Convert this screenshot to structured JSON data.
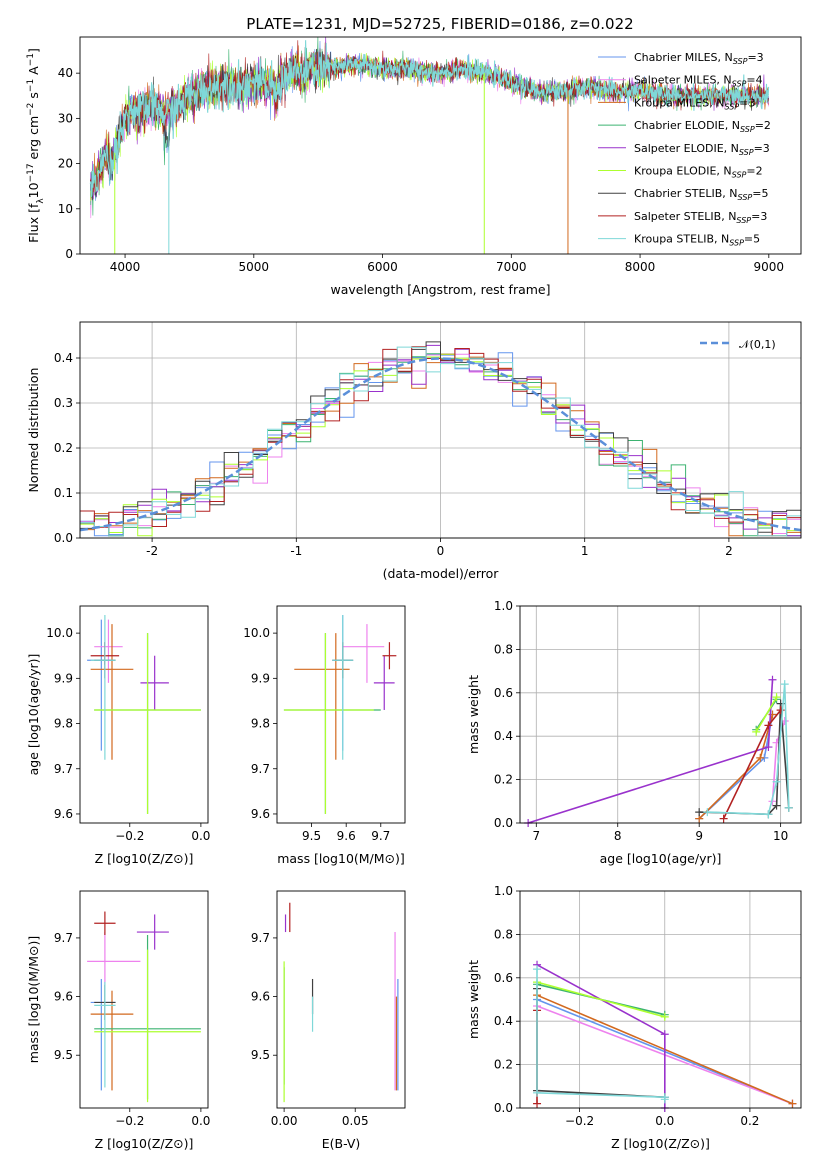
{
  "figure_title": "PLATE=1231, MJD=52725, FIBERID=0186, z=0.022",
  "colors": [
    "#6495ed",
    "#ee82ee",
    "#d2691e",
    "#3cb371",
    "#9932cc",
    "#adff2f",
    "#404040",
    "#b22222",
    "#7fd8d8"
  ],
  "legend_entries": [
    "Chabrier MILES, N_SSP=3",
    "Salpeter MILES, N_SSP=4",
    "Kroupa MILES, N_SSP=3",
    "Chabrier ELODIE, N_SSP=2",
    "Salpeter ELODIE, N_SSP=3",
    "Kroupa ELODIE, N_SSP=2",
    "Chabrier STELIB, N_SSP=5",
    "Salpeter STELIB, N_SSP=3",
    "Kroupa STELIB, N_SSP=5"
  ],
  "chart_data": [
    {
      "id": "spectrum",
      "type": "line",
      "xlabel": "wavelength [Angstrom, rest frame]",
      "ylabel": "Flux [f_λ 10^-17 erg cm^-2 s^-1 A^-1]",
      "xlim": [
        3650,
        9250
      ],
      "ylim": [
        0,
        48
      ],
      "xticks": [
        4000,
        5000,
        6000,
        7000,
        8000,
        9000
      ],
      "yticks": [
        0,
        10,
        20,
        30,
        40
      ],
      "x": [
        3730,
        3800,
        3850,
        3900,
        3950,
        4000,
        4050,
        4100,
        4200,
        4300,
        4400,
        4500,
        4600,
        4700,
        4800,
        4900,
        5000,
        5100,
        5200,
        5300,
        5400,
        5500,
        5600,
        5800,
        6000,
        6200,
        6400,
        6600,
        6800,
        7000,
        7200,
        7400,
        7600,
        7800,
        8000,
        8200,
        8400,
        8600,
        8800,
        9000
      ],
      "y": [
        14,
        18,
        22,
        20,
        26,
        30,
        32,
        31,
        33,
        31,
        32,
        35,
        36,
        37,
        37.5,
        37,
        38,
        37,
        38,
        40,
        40,
        41,
        41,
        42,
        41,
        41,
        40,
        41,
        40,
        38,
        36,
        36,
        37,
        36,
        36,
        35,
        35,
        35,
        35,
        35
      ],
      "dropouts": [
        3920,
        4340,
        6790,
        7440
      ]
    },
    {
      "id": "residuals",
      "type": "histogram",
      "xlabel": "(data-model)/error",
      "ylabel": "Normed distribution",
      "xlim": [
        -2.5,
        2.5
      ],
      "ylim": [
        0,
        0.48
      ],
      "xticks": [
        -2,
        -1,
        0,
        1,
        2
      ],
      "yticks": [
        0.0,
        0.1,
        0.2,
        0.3,
        0.4
      ],
      "bin_width": 0.1,
      "reference_curve": {
        "label": "𝒩(0,1)",
        "mean": 0,
        "sigma": 1
      },
      "grid": true,
      "legend_position": "upper right"
    },
    {
      "id": "age_vs_Z",
      "type": "scatter_errorbar",
      "xlabel": "Z [log10(Z/Z⊙)]",
      "ylabel": "age  [log10(age/yr)]",
      "xlim": [
        -0.34,
        0.02
      ],
      "ylim": [
        9.58,
        10.06
      ],
      "xticks": [
        -0.2,
        0.0
      ],
      "xtick_labels": [
        "−0.2",
        "0.0"
      ],
      "yticks": [
        9.6,
        9.7,
        9.8,
        9.9,
        10.0
      ],
      "points": [
        {
          "series": 0,
          "x": -0.28,
          "y": 9.94,
          "xerr": [
            0.04,
            0.03
          ],
          "yerr": [
            0.2,
            0.09
          ]
        },
        {
          "series": 1,
          "x": -0.26,
          "y": 9.97,
          "xerr": [
            0.04,
            0.04
          ],
          "yerr": [
            0.08,
            0.06
          ]
        },
        {
          "series": 2,
          "x": -0.25,
          "y": 9.92,
          "xerr": [
            0.06,
            0.06
          ],
          "yerr": [
            0.2,
            0.1
          ]
        },
        {
          "series": 3,
          "x": -0.15,
          "y": 9.83,
          "xerr": [
            0.15,
            0.15
          ],
          "yerr": [
            0.23,
            0.17
          ]
        },
        {
          "series": 4,
          "x": -0.13,
          "y": 9.89,
          "xerr": [
            0.04,
            0.04
          ],
          "yerr": [
            0.06,
            0.06
          ]
        },
        {
          "series": 5,
          "x": -0.15,
          "y": 9.83,
          "xerr": [
            0.15,
            0.15
          ],
          "yerr": [
            0.23,
            0.17
          ]
        },
        {
          "series": 6,
          "x": -0.27,
          "y": 9.94,
          "xerr": [
            0.03,
            0.03
          ],
          "yerr": [
            0.04,
            0.04
          ]
        },
        {
          "series": 7,
          "x": -0.27,
          "y": 9.95,
          "xerr": [
            0.04,
            0.04
          ],
          "yerr": [
            0.02,
            0.03
          ]
        },
        {
          "series": 8,
          "x": -0.27,
          "y": 9.94,
          "xerr": [
            0.04,
            0.03
          ],
          "yerr": [
            0.22,
            0.1
          ]
        }
      ]
    },
    {
      "id": "age_vs_mass",
      "type": "scatter_errorbar",
      "xlabel": "mass [log10(M/M⊙)]",
      "ylabel": "",
      "xlim": [
        9.4,
        9.77
      ],
      "ylim": [
        9.58,
        10.06
      ],
      "xticks": [
        9.5,
        9.6,
        9.7
      ],
      "yticks": [
        9.6,
        9.7,
        9.8,
        9.9,
        10.0
      ],
      "points": [
        {
          "series": 0,
          "x": 9.59,
          "y": 9.94,
          "xerr": [
            0.03,
            0.03
          ],
          "yerr": [
            0.2,
            0.1
          ]
        },
        {
          "series": 1,
          "x": 9.66,
          "y": 9.97,
          "xerr": [
            0.07,
            0.05
          ],
          "yerr": [
            0.08,
            0.05
          ]
        },
        {
          "series": 2,
          "x": 9.57,
          "y": 9.92,
          "xerr": [
            0.12,
            0.04
          ],
          "yerr": [
            0.2,
            0.08
          ]
        },
        {
          "series": 3,
          "x": 9.54,
          "y": 9.83,
          "xerr": [
            0.12,
            0.16
          ],
          "yerr": [
            0.23,
            0.17
          ]
        },
        {
          "series": 4,
          "x": 9.71,
          "y": 9.89,
          "xerr": [
            0.03,
            0.03
          ],
          "yerr": [
            0.06,
            0.06
          ]
        },
        {
          "series": 5,
          "x": 9.54,
          "y": 9.83,
          "xerr": [
            0.12,
            0.14
          ],
          "yerr": [
            0.23,
            0.17
          ]
        },
        {
          "series": 6,
          "x": 9.59,
          "y": 9.94,
          "xerr": [
            0.03,
            0.03
          ],
          "yerr": [
            0.04,
            0.04
          ]
        },
        {
          "series": 7,
          "x": 9.725,
          "y": 9.95,
          "xerr": [
            0.02,
            0.02
          ],
          "yerr": [
            0.03,
            0.03
          ]
        },
        {
          "series": 8,
          "x": 9.59,
          "y": 9.94,
          "xerr": [
            0.03,
            0.03
          ],
          "yerr": [
            0.22,
            0.1
          ]
        }
      ]
    },
    {
      "id": "weight_vs_age",
      "type": "line",
      "xlabel": "age  [log10(age/yr)]",
      "ylabel": "mass weight",
      "xlim": [
        6.8,
        10.25
      ],
      "ylim": [
        0,
        1
      ],
      "xticks": [
        7,
        8,
        9,
        10
      ],
      "yticks": [
        0.0,
        0.2,
        0.4,
        0.6,
        0.8,
        1.0
      ],
      "grid": true,
      "series": [
        {
          "series": 0,
          "x": [
            9.0,
            9.8,
            9.9
          ],
          "y": [
            0.02,
            0.3,
            0.5
          ]
        },
        {
          "series": 1,
          "x": [
            9.9,
            9.95,
            10.05
          ],
          "y": [
            0.1,
            0.37,
            0.47
          ]
        },
        {
          "series": 2,
          "x": [
            9.0,
            9.75,
            9.9
          ],
          "y": [
            0.02,
            0.3,
            0.5
          ]
        },
        {
          "series": 3,
          "x": [
            9.7,
            9.95
          ],
          "y": [
            0.43,
            0.57
          ]
        },
        {
          "series": 4,
          "x": [
            6.9,
            9.85,
            9.9
          ],
          "y": [
            0.0,
            0.35,
            0.66
          ]
        },
        {
          "series": 5,
          "x": [
            9.7,
            9.95
          ],
          "y": [
            0.42,
            0.58
          ]
        },
        {
          "series": 6,
          "x": [
            9.0,
            9.85,
            9.95,
            10.0,
            10.1
          ],
          "y": [
            0.05,
            0.04,
            0.08,
            0.55,
            0.07
          ]
        },
        {
          "series": 7,
          "x": [
            9.3,
            9.85,
            10.0
          ],
          "y": [
            0.02,
            0.45,
            0.52
          ]
        },
        {
          "series": 8,
          "x": [
            9.1,
            9.85,
            9.95,
            10.05,
            10.1
          ],
          "y": [
            0.05,
            0.04,
            0.19,
            0.64,
            0.07
          ]
        }
      ]
    },
    {
      "id": "mass_vs_Z",
      "type": "scatter_errorbar",
      "xlabel": "Z [log10(Z/Z⊙)]",
      "ylabel": "mass [log10(M/M⊙)]",
      "xlim": [
        -0.34,
        0.02
      ],
      "ylim": [
        9.41,
        9.78
      ],
      "xticks": [
        -0.2,
        0.0
      ],
      "xtick_labels": [
        "−0.2",
        "0.0"
      ],
      "yticks": [
        9.5,
        9.6,
        9.7
      ],
      "points": [
        {
          "series": 0,
          "x": -0.28,
          "y": 9.59,
          "xerr": [
            0.03,
            0.04
          ],
          "yerr": [
            0.15,
            0.04
          ]
        },
        {
          "series": 1,
          "x": -0.27,
          "y": 9.66,
          "xerr": [
            0.05,
            0.1
          ],
          "yerr": [
            0.04,
            0.05
          ]
        },
        {
          "series": 2,
          "x": -0.25,
          "y": 9.57,
          "xerr": [
            0.06,
            0.06
          ],
          "yerr": [
            0.13,
            0.04
          ]
        },
        {
          "series": 3,
          "x": -0.15,
          "y": 9.545,
          "xerr": [
            0.15,
            0.15
          ],
          "yerr": [
            0.12,
            0.16
          ]
        },
        {
          "series": 4,
          "x": -0.13,
          "y": 9.71,
          "xerr": [
            0.05,
            0.04
          ],
          "yerr": [
            0.03,
            0.03
          ]
        },
        {
          "series": 5,
          "x": -0.15,
          "y": 9.54,
          "xerr": [
            0.15,
            0.15
          ],
          "yerr": [
            0.12,
            0.14
          ]
        },
        {
          "series": 6,
          "x": -0.27,
          "y": 9.59,
          "xerr": [
            0.03,
            0.03
          ],
          "yerr": [
            0.03,
            0.03
          ]
        },
        {
          "series": 7,
          "x": -0.27,
          "y": 9.725,
          "xerr": [
            0.03,
            0.03
          ],
          "yerr": [
            0.02,
            0.02
          ]
        },
        {
          "series": 8,
          "x": -0.27,
          "y": 9.585,
          "xerr": [
            0.03,
            0.03
          ],
          "yerr": [
            0.14,
            0.04
          ]
        }
      ]
    },
    {
      "id": "mass_vs_EBV",
      "type": "scatter_errorbar",
      "xlabel": "E(B-V)",
      "ylabel": "",
      "xlim": [
        -0.005,
        0.085
      ],
      "ylim": [
        9.41,
        9.78
      ],
      "xticks": [
        0.0,
        0.05
      ],
      "xtick_labels": [
        "0.00",
        "0.05"
      ],
      "yticks": [
        9.5,
        9.6,
        9.7
      ],
      "points": [
        {
          "series": 0,
          "x": 0.08,
          "y": 9.55,
          "xerr": [
            0,
            0
          ],
          "yerr": [
            0.11,
            0.08
          ]
        },
        {
          "series": 1,
          "x": 0.078,
          "y": 9.6,
          "xerr": [
            0,
            0
          ],
          "yerr": [
            0.16,
            0.11
          ]
        },
        {
          "series": 2,
          "x": 0.079,
          "y": 9.56,
          "xerr": [
            0,
            0
          ],
          "yerr": [
            0.12,
            0.04
          ]
        },
        {
          "series": 3,
          "x": 0.0,
          "y": 9.55,
          "xerr": [
            0,
            0
          ],
          "yerr": [
            0.1,
            0.1
          ]
        },
        {
          "series": 4,
          "x": 0.001,
          "y": 9.72,
          "xerr": [
            0,
            0
          ],
          "yerr": [
            0.01,
            0.02
          ]
        },
        {
          "series": 5,
          "x": 0.0,
          "y": 9.54,
          "xerr": [
            0,
            0
          ],
          "yerr": [
            0.12,
            0.12
          ]
        },
        {
          "series": 6,
          "x": 0.02,
          "y": 9.6,
          "xerr": [
            0,
            0
          ],
          "yerr": [
            0.03,
            0.03
          ]
        },
        {
          "series": 7,
          "x": 0.004,
          "y": 9.73,
          "xerr": [
            0,
            0
          ],
          "yerr": [
            0.02,
            0.03
          ]
        },
        {
          "series": 8,
          "x": 0.02,
          "y": 9.57,
          "xerr": [
            0,
            0
          ],
          "yerr": [
            0.03,
            0.03
          ]
        }
      ]
    },
    {
      "id": "weight_vs_Z",
      "type": "line",
      "xlabel": "Z [log10(Z/Z⊙)]",
      "ylabel": "mass weight",
      "xlim": [
        -0.34,
        0.32
      ],
      "ylim": [
        0,
        1
      ],
      "xticks": [
        -0.2,
        0.0,
        0.2
      ],
      "xtick_labels": [
        "−0.2",
        "0.0",
        "0.2"
      ],
      "yticks": [
        0.0,
        0.2,
        0.4,
        0.6,
        0.8,
        1.0
      ],
      "grid": true,
      "series": [
        {
          "series": 0,
          "x": [
            -0.3,
            0.3
          ],
          "y": [
            0.5,
            0.02
          ]
        },
        {
          "series": 1,
          "x": [
            -0.3,
            0.3
          ],
          "y": [
            0.47,
            0.02
          ]
        },
        {
          "series": 2,
          "x": [
            -0.3,
            0.3
          ],
          "y": [
            0.52,
            0.02
          ]
        },
        {
          "series": 3,
          "x": [
            -0.3,
            0.0
          ],
          "y": [
            0.57,
            0.43
          ]
        },
        {
          "series": 4,
          "x": [
            -0.3,
            0.0,
            0.0
          ],
          "y": [
            0.66,
            0.34,
            0.0
          ]
        },
        {
          "series": 5,
          "x": [
            -0.3,
            0.0
          ],
          "y": [
            0.58,
            0.42
          ]
        },
        {
          "series": 6,
          "x": [
            -0.3,
            -0.3,
            0.0
          ],
          "y": [
            0.55,
            0.08,
            0.05
          ]
        },
        {
          "series": 7,
          "x": [
            -0.3,
            -0.3
          ],
          "y": [
            0.45,
            0.02
          ]
        },
        {
          "series": 8,
          "x": [
            -0.3,
            -0.3,
            0.0,
            0.0
          ],
          "y": [
            0.64,
            0.07,
            0.05,
            0.04
          ]
        }
      ]
    }
  ]
}
